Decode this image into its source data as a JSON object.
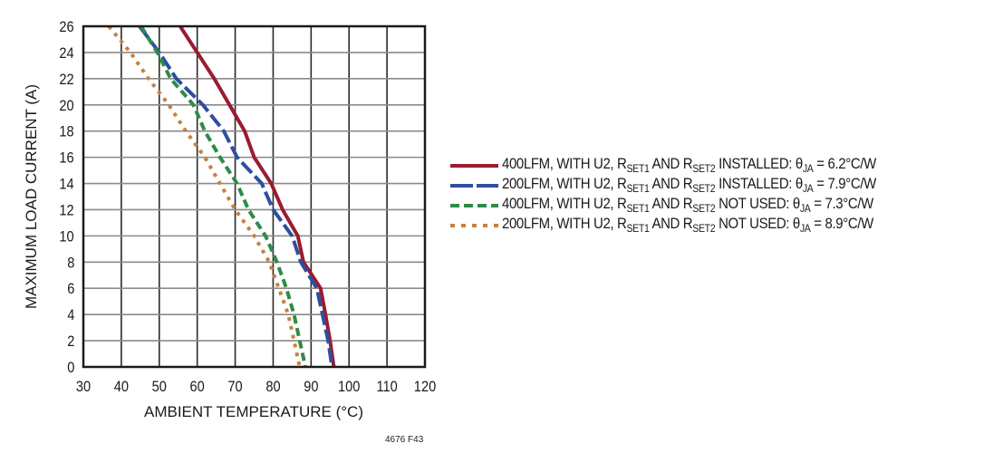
{
  "chart_data": {
    "type": "line",
    "title": "",
    "xlabel": "AMBIENT TEMPERATURE (°C)",
    "ylabel": "MAXIMUM LOAD CURRENT (A)",
    "xlim": [
      30,
      120
    ],
    "ylim": [
      0,
      26
    ],
    "xticks": [
      30,
      40,
      50,
      60,
      70,
      80,
      90,
      100,
      110,
      120
    ],
    "yticks": [
      0,
      2,
      4,
      6,
      8,
      10,
      12,
      14,
      16,
      18,
      20,
      22,
      24,
      26
    ],
    "grid": true,
    "legend_position": "right",
    "series": [
      {
        "name": "400LFM, WITH U2, RSET1 AND RSET2 INSTALLED: θJA = 6.2°C/W",
        "style": "solid",
        "color": "#9b1b30",
        "points": [
          [
            55.5,
            26
          ],
          [
            60,
            24
          ],
          [
            64.5,
            22
          ],
          [
            68.5,
            20
          ],
          [
            72.5,
            18
          ],
          [
            75,
            16
          ],
          [
            79.5,
            14
          ],
          [
            82.5,
            12
          ],
          [
            86.5,
            10
          ],
          [
            88,
            8
          ],
          [
            92.5,
            6
          ],
          [
            93.8,
            4
          ],
          [
            95,
            2
          ],
          [
            96,
            0
          ]
        ]
      },
      {
        "name": "200LFM, WITH U2, RSET1 AND RSET2 INSTALLED: θJA = 7.9°C/W",
        "style": "long-dash",
        "color": "#2e4fa0",
        "points": [
          [
            44.8,
            26
          ],
          [
            50,
            24
          ],
          [
            54.5,
            22
          ],
          [
            61.5,
            20
          ],
          [
            67,
            18
          ],
          [
            70.5,
            16
          ],
          [
            77,
            14
          ],
          [
            80,
            12
          ],
          [
            85,
            10
          ],
          [
            87.3,
            8
          ],
          [
            91.5,
            6
          ],
          [
            93,
            4
          ],
          [
            94.5,
            2
          ],
          [
            95.5,
            0
          ]
        ]
      },
      {
        "name": "400LFM, WITH U2, RSET1 AND RSET2 NOT USED: θJA = 7.3°C/W",
        "style": "dash",
        "color": "#2e8b48",
        "points": [
          [
            45.2,
            26
          ],
          [
            49.5,
            24
          ],
          [
            53,
            22
          ],
          [
            59,
            20
          ],
          [
            62,
            18
          ],
          [
            66,
            16
          ],
          [
            70.5,
            14
          ],
          [
            73.5,
            12
          ],
          [
            78,
            10
          ],
          [
            81,
            8
          ],
          [
            83.5,
            6
          ],
          [
            85.5,
            4
          ],
          [
            87,
            2
          ],
          [
            88.5,
            0
          ]
        ]
      },
      {
        "name": "200LFM, WITH U2, RSET1 AND RSET2 NOT USED: θJA = 8.9°C/W",
        "style": "dot",
        "color": "#c8813a",
        "points": [
          [
            36.7,
            26
          ],
          [
            42.4,
            24
          ],
          [
            47.2,
            22
          ],
          [
            52.5,
            20
          ],
          [
            57,
            18
          ],
          [
            62,
            16
          ],
          [
            66,
            14
          ],
          [
            70,
            12
          ],
          [
            75,
            10
          ],
          [
            79,
            8
          ],
          [
            81.5,
            6
          ],
          [
            84,
            4
          ],
          [
            85.5,
            2
          ],
          [
            87,
            0
          ]
        ]
      }
    ]
  },
  "axes": {
    "xlabel": "AMBIENT TEMPERATURE (°C)",
    "ylabel": "MAXIMUM LOAD CURRENT (A)"
  },
  "legend": [
    {
      "prefix": "400LFM, WITH U2, R",
      "sub1": "SET1",
      "mid": " AND R",
      "sub2": "SET2",
      "suffix": " INSTALLED: θ",
      "sub3": "JA",
      "value": " = 6.2°C/W",
      "color": "#9b1b30"
    },
    {
      "prefix": "200LFM, WITH U2, R",
      "sub1": "SET1",
      "mid": " AND R",
      "sub2": "SET2",
      "suffix": " INSTALLED: θ",
      "sub3": "JA",
      "value": " = 7.9°C/W",
      "color": "#2e4fa0"
    },
    {
      "prefix": "400LFM, WITH U2, R",
      "sub1": "SET1",
      "mid": " AND R",
      "sub2": "SET2",
      "suffix": " NOT USED: θ",
      "sub3": "JA",
      "value": " = 7.3°C/W",
      "color": "#2e8b48"
    },
    {
      "prefix": "200LFM, WITH U2, R",
      "sub1": "SET1",
      "mid": " AND R",
      "sub2": "SET2",
      "suffix": " NOT USED: θ",
      "sub3": "JA",
      "value": " = 8.9°C/W",
      "color": "#c8813a"
    }
  ],
  "figure_id": "4676 F43"
}
